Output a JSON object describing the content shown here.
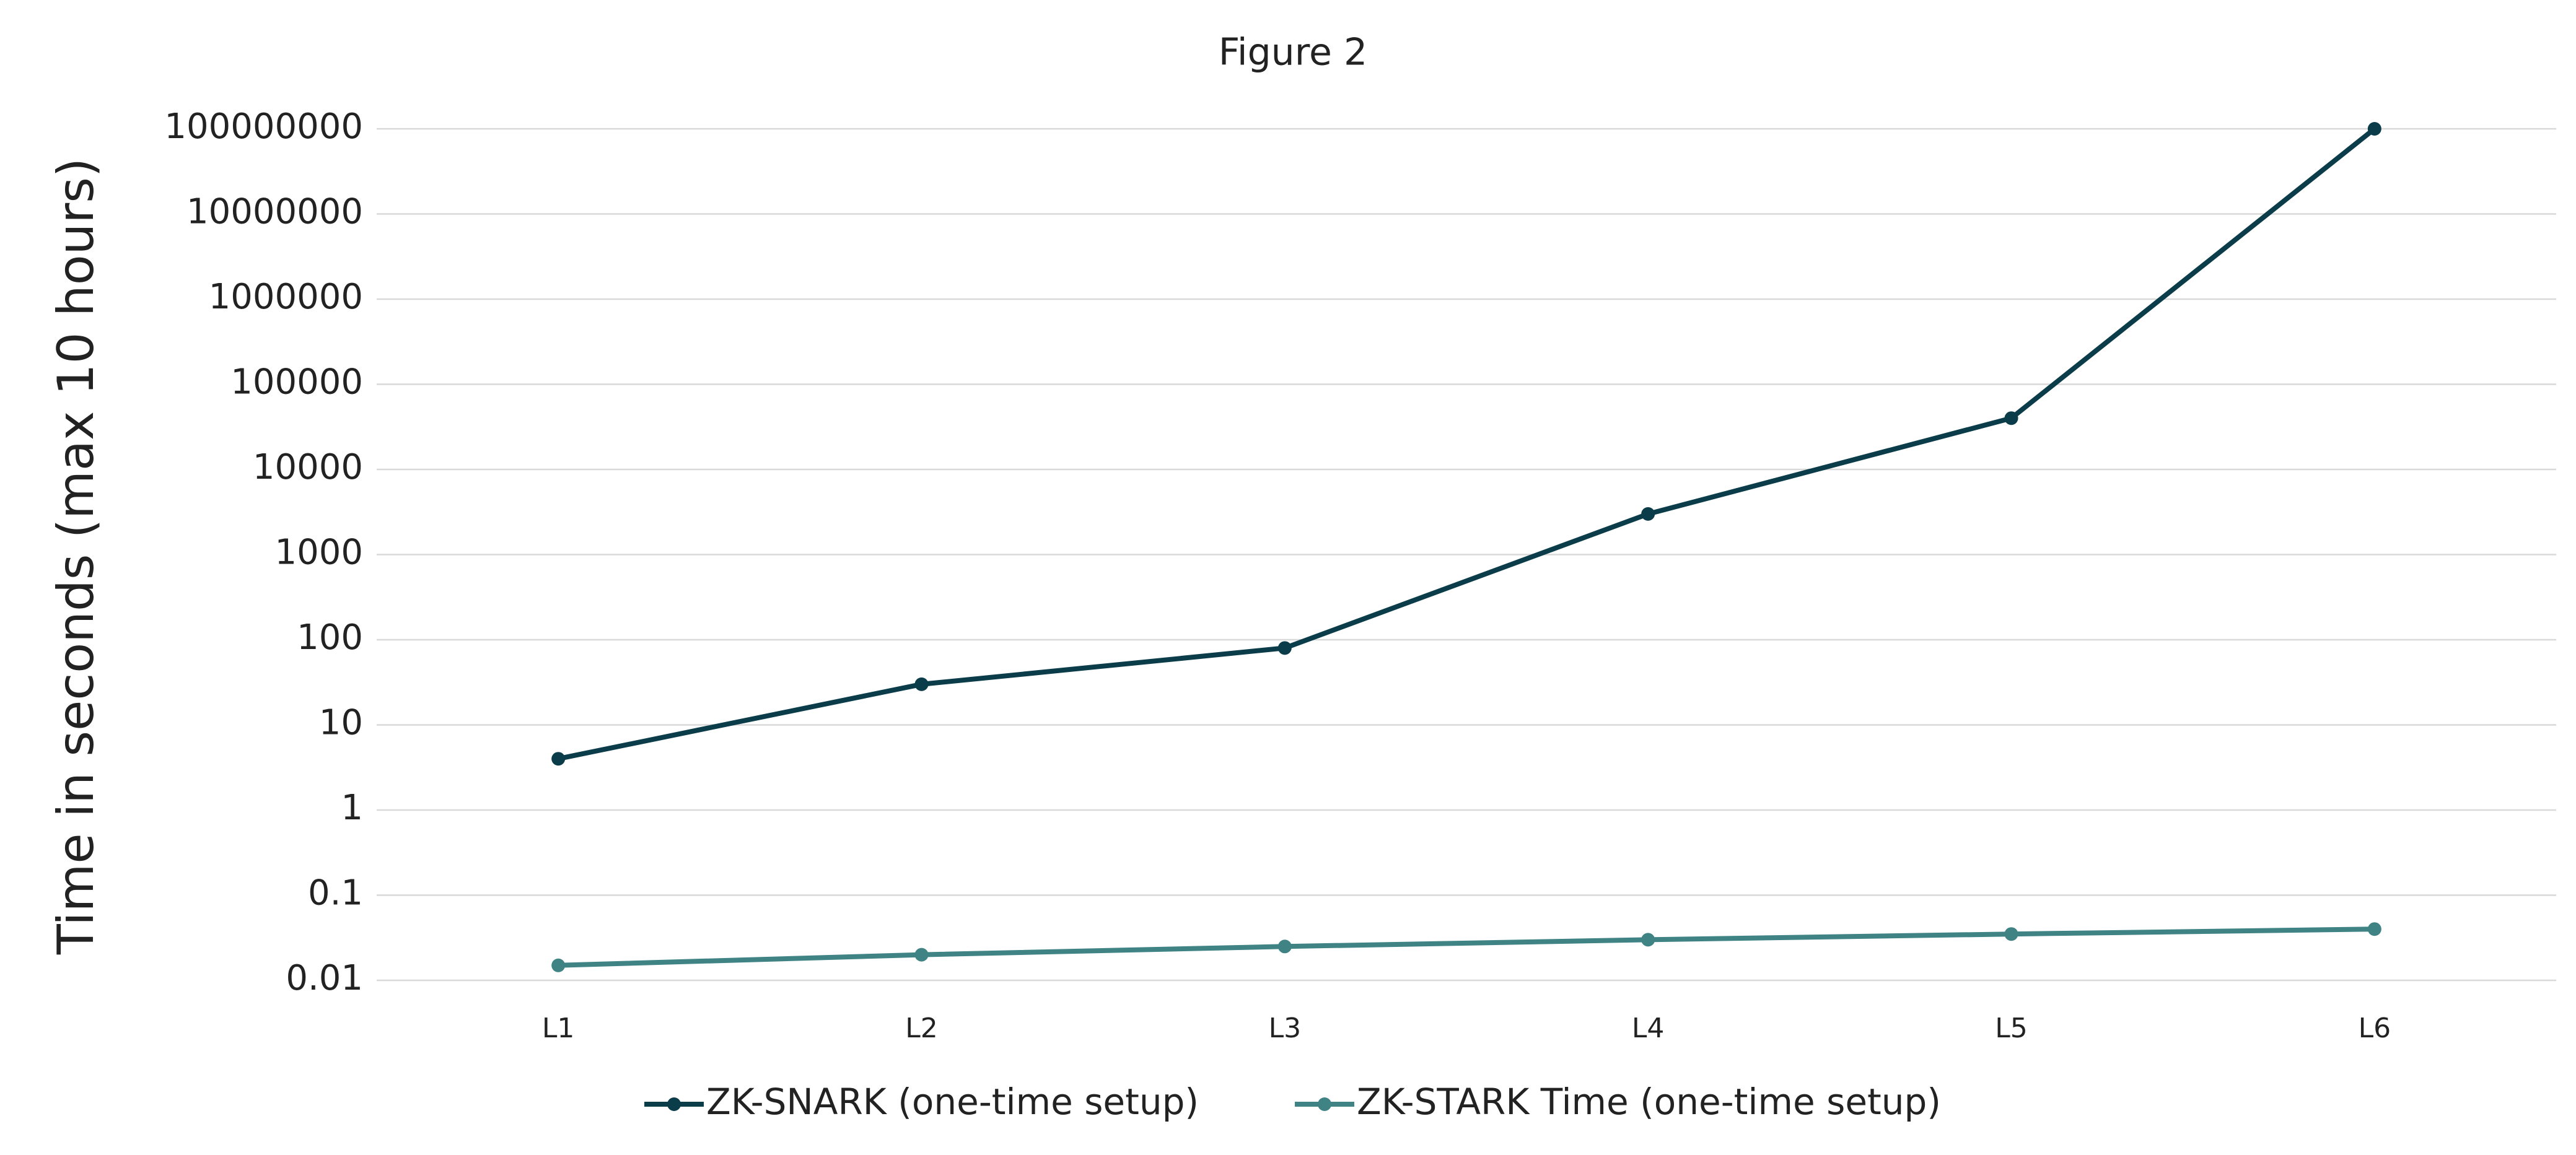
{
  "chart_data": {
    "type": "line",
    "title": "Figure 2",
    "y_label": "Time in seconds (max 10 hours)",
    "categories": [
      "L1",
      "L2",
      "L3",
      "L4",
      "L5",
      "L6"
    ],
    "series": [
      {
        "name": "ZK-SNARK (one-time setup)",
        "color": "#0b3c49",
        "values": [
          4,
          30,
          80,
          3000,
          40000,
          100000000
        ]
      },
      {
        "name": "ZK-STARK Time (one-time setup)",
        "color": "#3f8385",
        "values": [
          0.015,
          0.02,
          0.025,
          0.03,
          0.035,
          0.04
        ]
      }
    ],
    "ylim": [
      0.01,
      100000000
    ],
    "log_scale": true,
    "yticks": [
      0.01,
      0.1,
      1,
      10,
      100,
      1000,
      10000,
      100000,
      1000000,
      10000000,
      100000000
    ],
    "grid": true,
    "legend": "bottom"
  }
}
